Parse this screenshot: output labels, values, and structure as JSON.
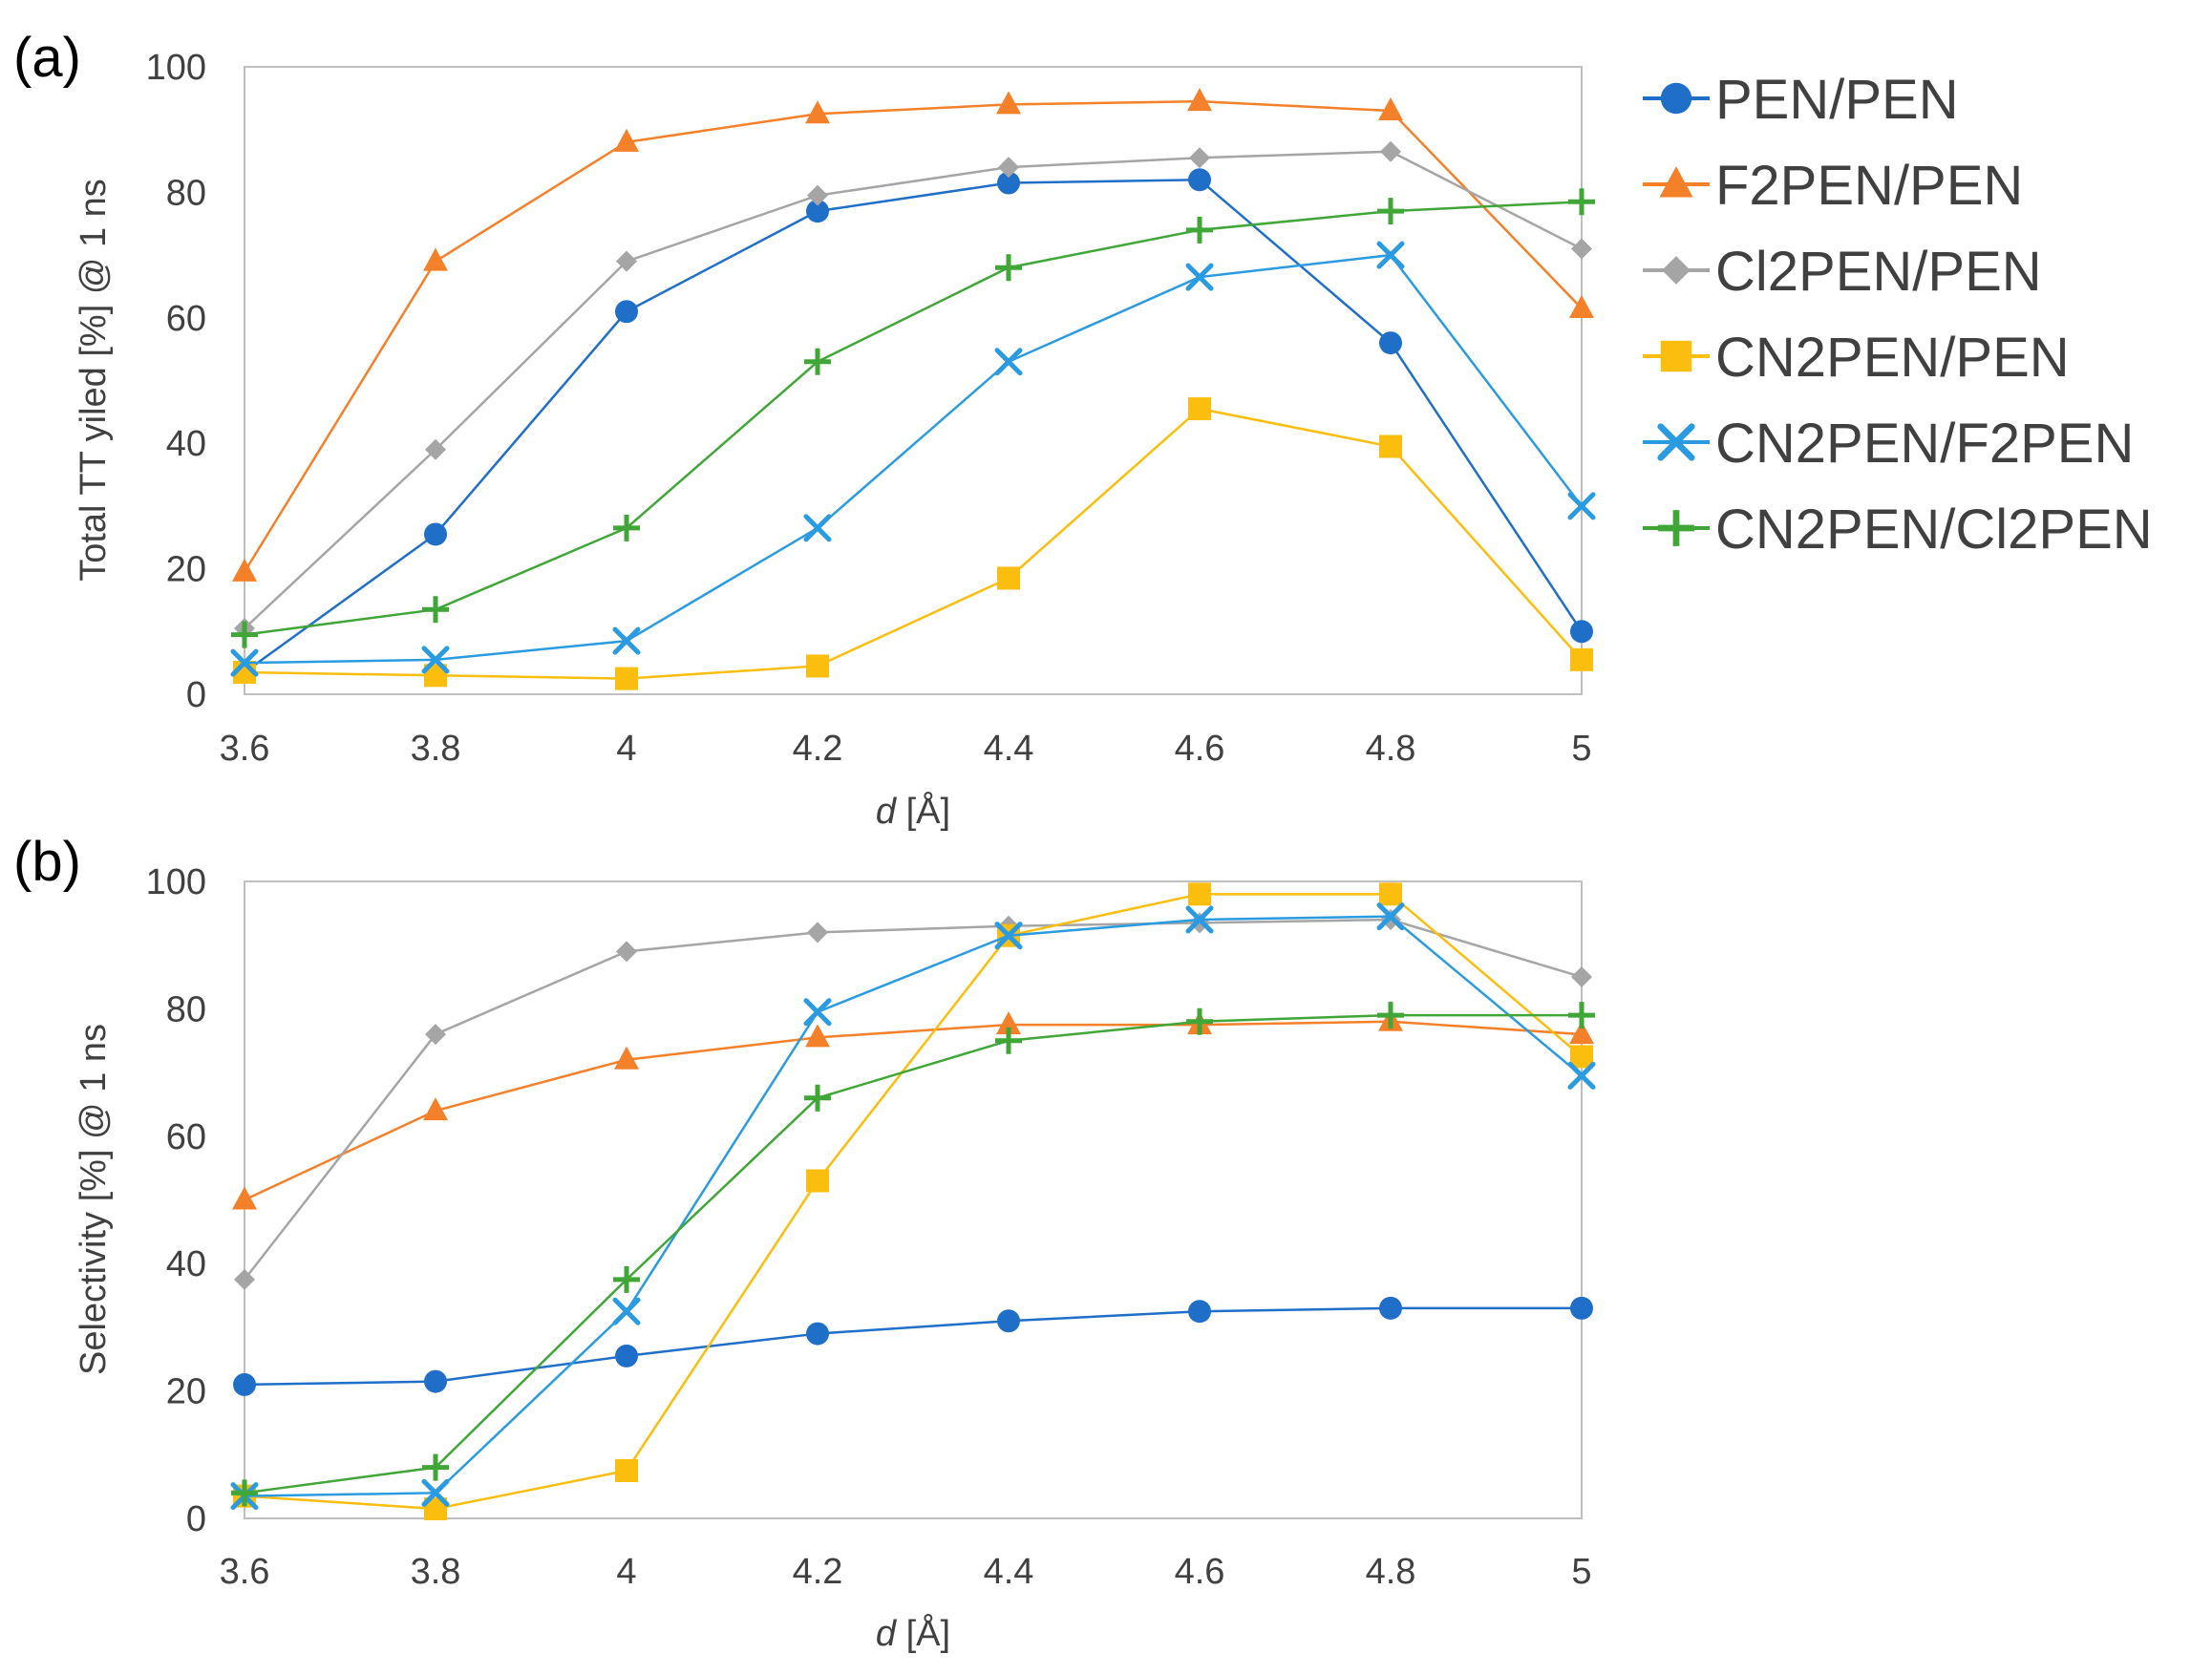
{
  "colors": {
    "PEN/PEN": "#1f6fc9",
    "F2PEN/PEN": "#f5802a",
    "Cl2PEN/PEN": "#a5a5a5",
    "CN2PEN/PEN": "#fbbd0e",
    "CN2PEN/F2PEN": "#2a9be0",
    "CN2PEN/Cl2PEN": "#3fa637",
    "axis": "#bfbfbf",
    "text": "#404040"
  },
  "legend": [
    {
      "label": "PEN/PEN",
      "marker": "circle-icon"
    },
    {
      "label": "F2PEN/PEN",
      "marker": "triangle-icon"
    },
    {
      "label": "Cl2PEN/PEN",
      "marker": "diamond-icon"
    },
    {
      "label": "CN2PEN/PEN",
      "marker": "square-icon"
    },
    {
      "label": "CN2PEN/F2PEN",
      "marker": "x-cross-icon"
    },
    {
      "label": "CN2PEN/Cl2PEN",
      "marker": "plus-icon"
    }
  ],
  "chart_data": [
    {
      "panel": "(a)",
      "type": "line",
      "x": [
        3.6,
        3.8,
        4.0,
        4.2,
        4.4,
        4.6,
        4.8,
        5.0
      ],
      "x_tick_labels": [
        "3.6",
        "3.8",
        "4",
        "4.2",
        "4.4",
        "4.6",
        "4.8",
        "5"
      ],
      "y_tick_labels": [
        "0",
        "20",
        "40",
        "60",
        "80",
        "100"
      ],
      "xlim": [
        3.6,
        5.0
      ],
      "ylim": [
        0,
        100
      ],
      "xlabel_var": "d",
      "xlabel_unit": " [Å]",
      "ylabel": "Total TT yiled [%] @ 1 ns",
      "series": [
        {
          "name": "PEN/PEN",
          "marker": "circle",
          "values": [
            3.5,
            25.5,
            61,
            77,
            81.5,
            82,
            56,
            10
          ]
        },
        {
          "name": "F2PEN/PEN",
          "marker": "triangle",
          "values": [
            19.5,
            69,
            88,
            92.5,
            94,
            94.5,
            93,
            61.5
          ]
        },
        {
          "name": "Cl2PEN/PEN",
          "marker": "diamond",
          "values": [
            10.5,
            39,
            69,
            79.5,
            84,
            85.5,
            86.5,
            71
          ]
        },
        {
          "name": "CN2PEN/PEN",
          "marker": "square",
          "values": [
            3.5,
            3,
            2.5,
            4.5,
            18.5,
            45.5,
            39.5,
            5.5
          ]
        },
        {
          "name": "CN2PEN/F2PEN",
          "marker": "x",
          "values": [
            5,
            5.5,
            8.5,
            26.5,
            53,
            66.5,
            70,
            30
          ]
        },
        {
          "name": "CN2PEN/Cl2PEN",
          "marker": "plus",
          "values": [
            9.5,
            13.5,
            26.5,
            53,
            68,
            74,
            77,
            78.5
          ]
        }
      ]
    },
    {
      "panel": "(b)",
      "type": "line",
      "x": [
        3.6,
        3.8,
        4.0,
        4.2,
        4.4,
        4.6,
        4.8,
        5.0
      ],
      "x_tick_labels": [
        "3.6",
        "3.8",
        "4",
        "4.2",
        "4.4",
        "4.6",
        "4.8",
        "5"
      ],
      "y_tick_labels": [
        "0",
        "20",
        "40",
        "60",
        "80",
        "100"
      ],
      "xlim": [
        3.6,
        5.0
      ],
      "ylim": [
        0,
        100
      ],
      "xlabel_var": "d",
      "xlabel_unit": " [Å]",
      "ylabel": "Selectivity [%] @ 1 ns",
      "series": [
        {
          "name": "PEN/PEN",
          "marker": "circle",
          "values": [
            21,
            21.5,
            25.5,
            29,
            31,
            32.5,
            33,
            33
          ]
        },
        {
          "name": "F2PEN/PEN",
          "marker": "triangle",
          "values": [
            50,
            64,
            72,
            75.5,
            77.5,
            77.5,
            78,
            76
          ]
        },
        {
          "name": "Cl2PEN/PEN",
          "marker": "diamond",
          "values": [
            37.5,
            76,
            89,
            92,
            93,
            93.5,
            94,
            85
          ]
        },
        {
          "name": "CN2PEN/PEN",
          "marker": "square",
          "values": [
            3.5,
            1.5,
            7.5,
            53,
            91.5,
            98,
            98,
            72.5
          ]
        },
        {
          "name": "CN2PEN/F2PEN",
          "marker": "x",
          "values": [
            3.5,
            4,
            32.5,
            79.5,
            91.5,
            94,
            94.5,
            69.5
          ]
        },
        {
          "name": "CN2PEN/Cl2PEN",
          "marker": "plus",
          "values": [
            4,
            8,
            37.5,
            66,
            75,
            78,
            79,
            79
          ]
        }
      ]
    }
  ]
}
